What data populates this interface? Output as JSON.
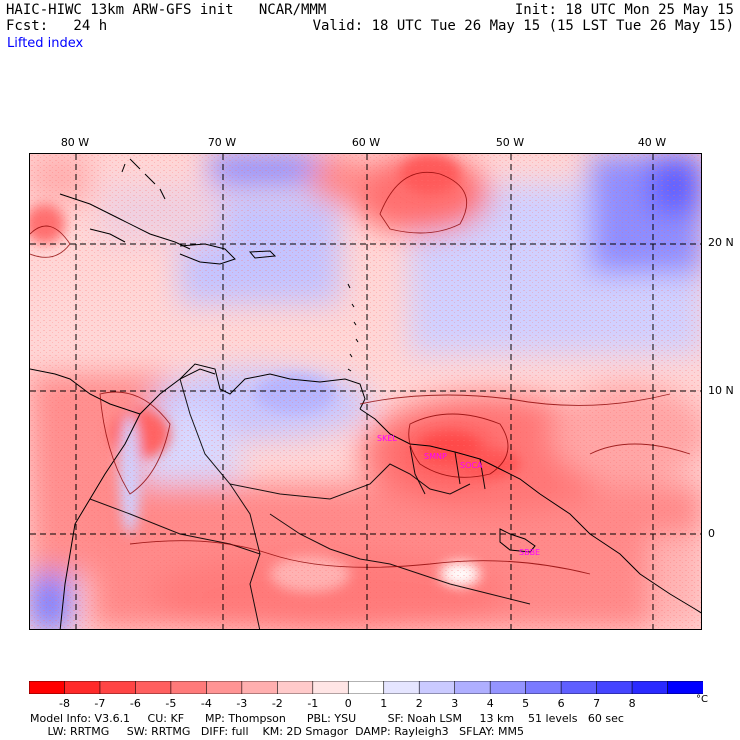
{
  "header": {
    "model_title": "HAIC-HIWC 13km ARW-GFS init   NCAR/MMM",
    "fcst": "Fcst:   24 h",
    "init": "Init: 18 UTC Mon 25 May 15",
    "valid": "Valid: 18 UTC Tue 26 May 15 (15 LST Tue 26 May 15)",
    "field": "Lifted index"
  },
  "map": {
    "lon_labels": [
      "80 W",
      "70 W",
      "60 W",
      "50 W",
      "40 W"
    ],
    "lat_labels": [
      "20 N",
      "10 N",
      "0"
    ],
    "stations": [
      "SKEL",
      "SMNP",
      "SOCA",
      "SBBE"
    ],
    "colors": {
      "coast": "#000000",
      "grid": "#000000",
      "station": "#ff00ff"
    }
  },
  "colorbar": {
    "labels": [
      "-8",
      "-7",
      "-6",
      "-5",
      "-4",
      "-3",
      "-2",
      "-1",
      "0",
      "1",
      "2",
      "3",
      "4",
      "5",
      "6",
      "7",
      "8"
    ],
    "unit": "°C",
    "colors": [
      "#ff0000",
      "#ff2a2a",
      "#ff4545",
      "#ff5f5f",
      "#ff7a7a",
      "#ff9494",
      "#ffafaf",
      "#ffcaca",
      "#ffe5e5",
      "#ffffff",
      "#e5e5ff",
      "#cacaff",
      "#afafff",
      "#9494ff",
      "#7a7aff",
      "#5f5fff",
      "#4545ff",
      "#2a2aff",
      "#0000ff"
    ]
  },
  "model_info": {
    "line1": "Model Info: V3.6.1     CU: KF      MP: Thompson      PBL: YSU         SF: Noah LSM     13 km    51 levels   60 sec",
    "line2": "     LW: RRTMG     SW: RRTMG   DIFF: full    KM: 2D Smagor  DAMP: Rayleigh3   SFLAY: MM5"
  }
}
